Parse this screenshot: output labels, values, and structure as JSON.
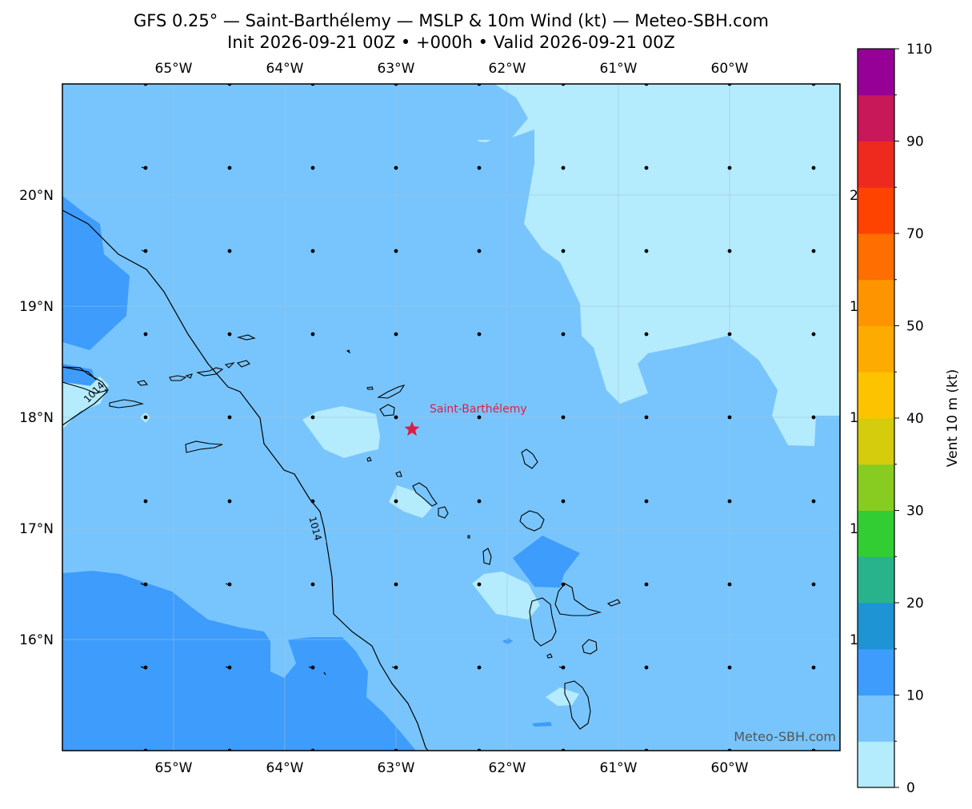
{
  "header": {
    "title_line1": "GFS 0.25° — Saint-Barthélemy — MSLP & 10m Wind (kt) — Meteo-SBH.com",
    "title_line2": "Init 2026-09-21 00Z • +000h • Valid 2026-09-21 00Z"
  },
  "map": {
    "lon_labels": [
      "65°W",
      "64°W",
      "63°W",
      "62°W",
      "61°W",
      "60°W"
    ],
    "lat_labels": [
      "20°N",
      "19°N",
      "18°N",
      "17°N",
      "16°N"
    ],
    "right_lat_fragments": [
      "2",
      "1",
      "1",
      "1",
      "1"
    ],
    "site_label": "Saint-Barthélemy",
    "site_marker_color": "#dc1e46",
    "isobar_label_1": "1014",
    "isobar_label_2": "1014",
    "watermark": "Meteo-SBH.com"
  },
  "colorbar": {
    "label": "Vent 10 m (kt)",
    "tick_labels": [
      "0",
      "10",
      "20",
      "30",
      "40",
      "50",
      "70",
      "90",
      "110"
    ],
    "colors": [
      "#b4ebfd",
      "#78c5fd",
      "#3d9cfc",
      "#1e94d4",
      "#28b38c",
      "#32cd32",
      "#88cc22",
      "#d4cc0c",
      "#fec300",
      "#feab00",
      "#fe9500",
      "#fe6e00",
      "#fe4300",
      "#ee2a1e",
      "#c8185a",
      "#960096"
    ]
  },
  "wind_field": {
    "fill_0_5kt": "#b4ebfd",
    "fill_5_10kt": "#78c5fd",
    "fill_10_15kt": "#3d9cfc"
  }
}
